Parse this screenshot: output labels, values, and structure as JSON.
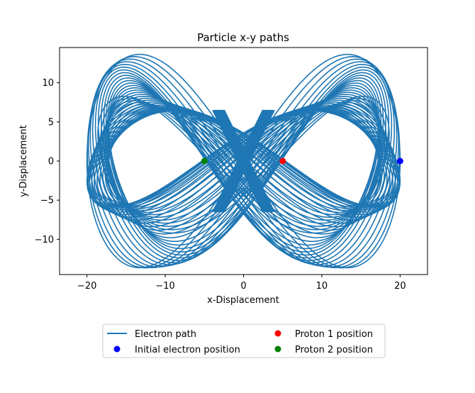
{
  "chart_data": {
    "type": "line",
    "title": "Particle x-y paths",
    "xlabel": "x-Displacement",
    "ylabel": "y-Displacement",
    "xlim": [
      -23.5,
      23.5
    ],
    "ylim": [
      -14.5,
      14.5
    ],
    "xticks": [
      -20,
      -10,
      0,
      10,
      20
    ],
    "xtick_labels": [
      "−20",
      "−10",
      "0",
      "10",
      "20"
    ],
    "yticks": [
      -10,
      -5,
      0,
      5,
      10
    ],
    "ytick_labels": [
      "−10",
      "−5",
      "0",
      "5",
      "10"
    ],
    "grid": false,
    "legend_placement": "below plot, two columns",
    "series": [
      {
        "name": "Electron path",
        "kind": "line",
        "color": "#1f77b4",
        "shape": "figure-eight orbit around both protons, lobes reaching x ≈ ±20 and y ≈ ±13.7",
        "x_extent": [
          -20,
          20
        ],
        "y_extent": [
          -13.7,
          13.7
        ]
      },
      {
        "name": "Initial electron position",
        "kind": "point",
        "color": "#0000ff",
        "x": 20,
        "y": 0
      },
      {
        "name": "Proton 1 position",
        "kind": "point",
        "color": "#ff0000",
        "x": 5,
        "y": 0
      },
      {
        "name": "Proton 2 position",
        "kind": "point",
        "color": "#008000",
        "x": -5,
        "y": 0
      }
    ]
  }
}
